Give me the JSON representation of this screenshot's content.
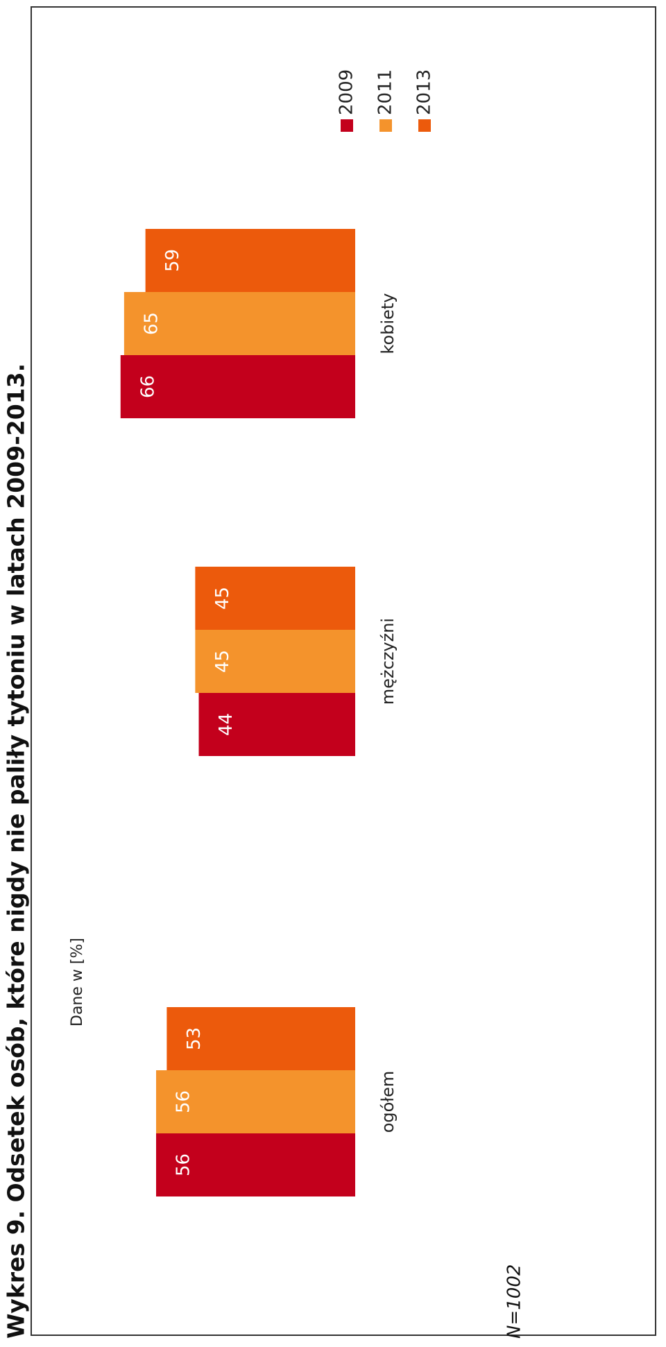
{
  "chart_data": {
    "type": "bar",
    "title": "Wykres 9. Odsetek osób, które nigdy nie paliły tytoniu w latach 2009-2013.",
    "subtitle": "Dane w [%]",
    "note": "N=1002",
    "categories": [
      "ogółem",
      "mężczyźni",
      "kobiety"
    ],
    "series": [
      {
        "name": "2009",
        "color": "#c3001c",
        "values": [
          56,
          44,
          66
        ]
      },
      {
        "name": "2011",
        "color": "#f4932c",
        "values": [
          56,
          45,
          65
        ]
      },
      {
        "name": "2013",
        "color": "#ec5a0c",
        "values": [
          53,
          45,
          59
        ]
      }
    ],
    "legend": "top-right"
  }
}
